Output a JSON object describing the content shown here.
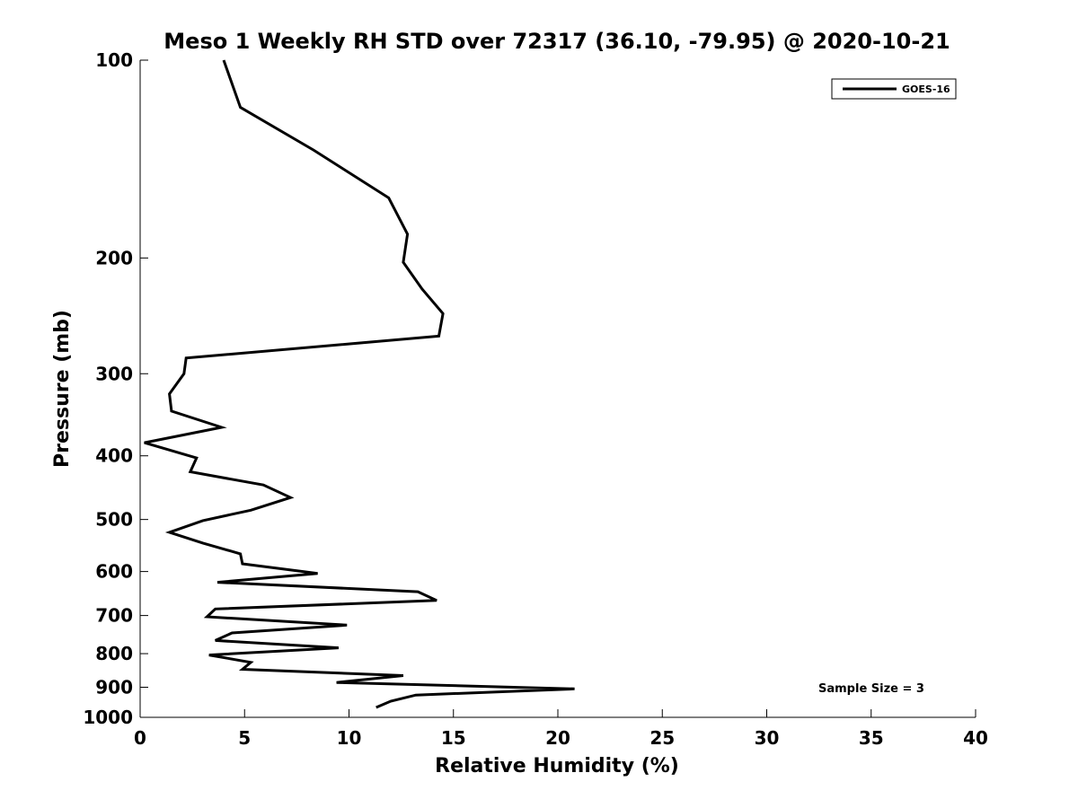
{
  "chart_data": {
    "type": "line",
    "title": "Meso 1 Weekly RH STD over 72317 (36.10, -79.95) @ 2020-10-21",
    "xlabel": "Relative Humidity (%)",
    "ylabel": "Pressure (mb)",
    "xlim": [
      0,
      40
    ],
    "ylim": [
      100,
      1000
    ],
    "y_scale": "log",
    "x_ticks": [
      0,
      5,
      10,
      15,
      20,
      25,
      30,
      35,
      40
    ],
    "x_tick_labels": [
      "0",
      "5",
      "10",
      "15",
      "20",
      "25",
      "30",
      "35",
      "40"
    ],
    "y_ticks": [
      100,
      200,
      300,
      400,
      500,
      600,
      700,
      800,
      900,
      1000
    ],
    "y_tick_labels": [
      "100",
      "200",
      "300",
      "400",
      "500",
      "600",
      "700",
      "800",
      "900",
      "1000"
    ],
    "grid": false,
    "legend_position": "top-right",
    "annotation": "Sample Size = 3",
    "series": [
      {
        "name": "GOES-16",
        "color": "#000000",
        "x": [
          4.0,
          4.8,
          8.3,
          11.9,
          12.8,
          12.6,
          13.5,
          14.5,
          14.3,
          2.2,
          2.1,
          1.4,
          1.5,
          3.9,
          0.2,
          2.7,
          2.4,
          5.9,
          7.2,
          5.3,
          3.0,
          1.4,
          3.0,
          4.8,
          4.9,
          8.5,
          3.7,
          13.3,
          14.2,
          3.6,
          3.2,
          9.9,
          4.4,
          3.6,
          9.5,
          3.3,
          5.3,
          4.9,
          12.6,
          9.4,
          20.8,
          13.2,
          12.0,
          11.3
        ],
        "y": [
          100,
          118,
          137,
          162,
          184,
          203,
          223,
          243,
          263,
          284,
          300,
          322,
          342,
          362,
          382,
          403,
          423,
          443,
          463,
          484,
          502,
          523,
          543,
          564,
          584,
          604,
          623,
          644,
          664,
          684,
          703,
          724,
          744,
          764,
          784,
          804,
          825,
          845,
          864,
          885,
          905,
          925,
          945,
          966
        ]
      }
    ]
  }
}
